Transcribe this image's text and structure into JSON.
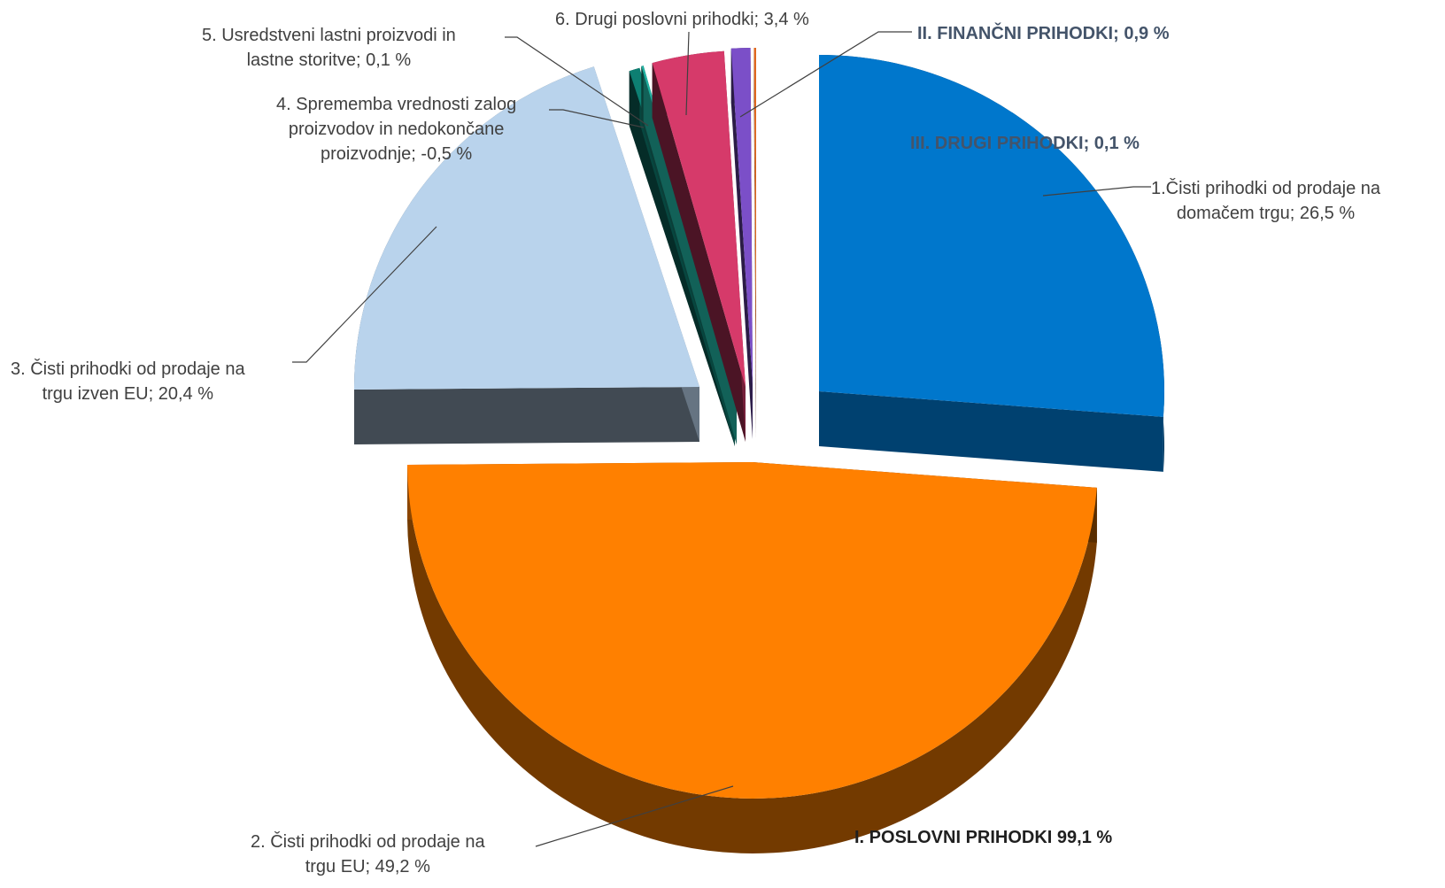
{
  "chart_data": {
    "type": "pie",
    "style": "3d-exploded",
    "slices": [
      {
        "key": "s1",
        "label_lines": [
          "1.Čisti prihodki od prodaje na",
          "domačem trgu; 26,5 %"
        ],
        "value": 26.5,
        "color": "#0077cc"
      },
      {
        "key": "s2",
        "label_lines": [
          "2. Čisti prihodki od prodaje na",
          "trgu EU; 49,2 %"
        ],
        "value": 49.2,
        "color": "#ff8000"
      },
      {
        "key": "s3",
        "label_lines": [
          "3. Čisti prihodki od prodaje na",
          "trgu izven EU; 20,4 %"
        ],
        "value": 20.4,
        "color": "#b9d3ec"
      },
      {
        "key": "s4",
        "label_lines": [
          "4. Sprememba vrednosti zalog",
          "proizvodov in nedokončane",
          "proizvodnje; -0,5 %"
        ],
        "value": -0.5,
        "color": "#0d7f72"
      },
      {
        "key": "s5",
        "label_lines": [
          "5. Usredstveni lastni proizvodi in",
          "lastne storitve; 0,1 %"
        ],
        "value": 0.1,
        "color": "#20b0a0"
      },
      {
        "key": "s6",
        "label_lines": [
          "6. Drugi poslovni prihodki; 3,4 %"
        ],
        "value": 3.4,
        "color": "#d63a6a"
      },
      {
        "key": "s7",
        "label_lines": [
          "II. FINANČNI PRIHODKI; 0,9 %"
        ],
        "value": 0.9,
        "color": "#7b4fc8"
      },
      {
        "key": "s8",
        "label_lines": [
          "III. DRUGI PRIHODKI; 0,1 %"
        ],
        "value": 0.1,
        "color": "#e06820"
      }
    ],
    "group_label": "I. POSLOVNI PRIHODKI 99,1 %"
  }
}
